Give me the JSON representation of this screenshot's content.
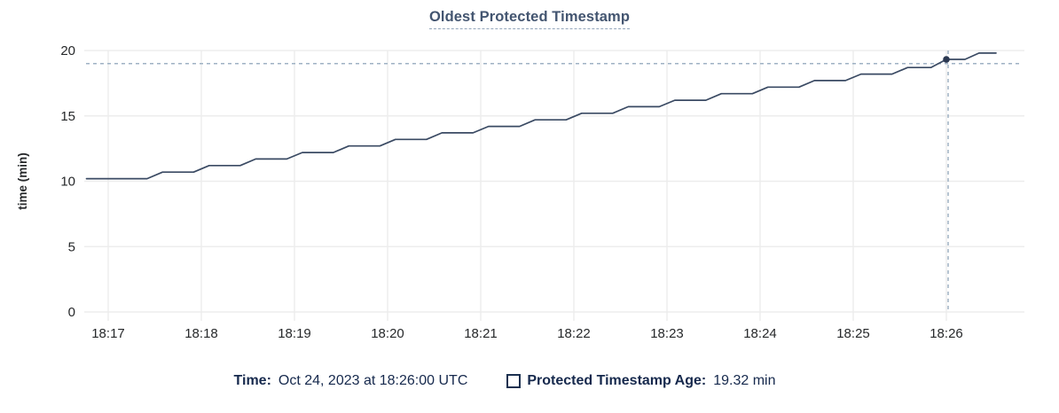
{
  "title": "Oldest Protected Timestamp",
  "chart_data": {
    "type": "line",
    "title": "Oldest Protected Timestamp",
    "xlabel": "",
    "ylabel": "time (min)",
    "ylim": [
      0,
      20
    ],
    "y_ticks": [
      0,
      5,
      10,
      15,
      20
    ],
    "x_ticks": [
      "18:17",
      "18:18",
      "18:19",
      "18:20",
      "18:21",
      "18:22",
      "18:23",
      "18:24",
      "18:25",
      "18:26"
    ],
    "x_tick_interval_seconds": 60,
    "grid": true,
    "legend_position": "bottom",
    "series": [
      {
        "name": "Protected Timestamp Age",
        "units": "min",
        "points_time_offset_seconds_from_18_17": [
          [
            -14,
            10.2
          ],
          [
            25,
            10.2
          ],
          [
            35,
            10.7
          ],
          [
            55,
            10.7
          ],
          [
            65,
            11.2
          ],
          [
            85,
            11.2
          ],
          [
            95,
            11.7
          ],
          [
            115,
            11.7
          ],
          [
            125,
            12.2
          ],
          [
            145,
            12.2
          ],
          [
            155,
            12.7
          ],
          [
            175,
            12.7
          ],
          [
            185,
            13.2
          ],
          [
            205,
            13.2
          ],
          [
            215,
            13.7
          ],
          [
            235,
            13.7
          ],
          [
            245,
            14.2
          ],
          [
            265,
            14.2
          ],
          [
            275,
            14.7
          ],
          [
            295,
            14.7
          ],
          [
            305,
            15.2
          ],
          [
            325,
            15.2
          ],
          [
            335,
            15.7
          ],
          [
            355,
            15.7
          ],
          [
            365,
            16.2
          ],
          [
            385,
            16.2
          ],
          [
            395,
            16.7
          ],
          [
            415,
            16.7
          ],
          [
            425,
            17.2
          ],
          [
            445,
            17.2
          ],
          [
            455,
            17.7
          ],
          [
            475,
            17.7
          ],
          [
            485,
            18.2
          ],
          [
            505,
            18.2
          ],
          [
            515,
            18.7
          ],
          [
            530,
            18.7
          ],
          [
            540,
            19.32
          ],
          [
            552,
            19.32
          ],
          [
            561,
            19.8
          ],
          [
            572,
            19.8
          ]
        ]
      }
    ],
    "hover": {
      "time_offset_seconds": 540,
      "time_label": "18:26:00",
      "value": 19.32,
      "hline_value": 19.0
    }
  },
  "tooltip": {
    "time_label": "Time:",
    "time_value": "Oct 24, 2023 at 18:26:00 UTC",
    "checkbox_icon": "square-outline",
    "series_label": "Protected Timestamp Age:",
    "series_value": "19.32 min"
  },
  "colors": {
    "line": "#3a4a63",
    "dot": "#2b3952",
    "grid": "#ededed",
    "crosshair": "#9fb2c4",
    "tick_text": "#26282a",
    "title_text": "#435570",
    "legend_text": "#16294d"
  }
}
